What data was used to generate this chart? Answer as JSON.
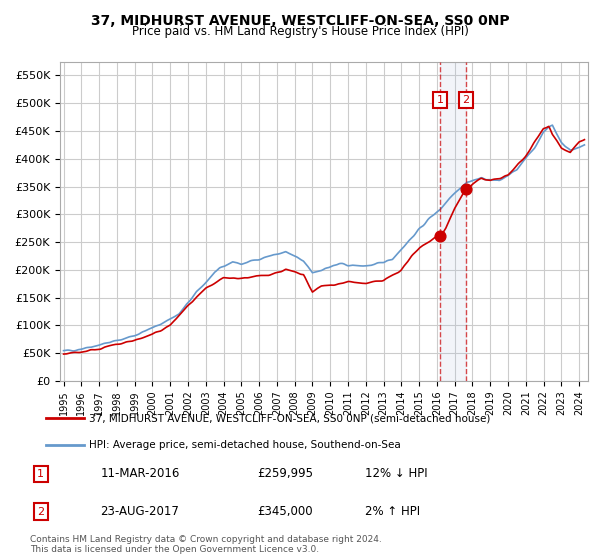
{
  "title": "37, MIDHURST AVENUE, WESTCLIFF-ON-SEA, SS0 0NP",
  "subtitle": "Price paid vs. HM Land Registry's House Price Index (HPI)",
  "legend_line1": "37, MIDHURST AVENUE, WESTCLIFF-ON-SEA, SS0 0NP (semi-detached house)",
  "legend_line2": "HPI: Average price, semi-detached house, Southend-on-Sea",
  "transaction1_date": "11-MAR-2016",
  "transaction1_price": 259995,
  "transaction1_hpi": "12% ↓ HPI",
  "transaction2_date": "23-AUG-2017",
  "transaction2_price": 345000,
  "transaction2_hpi": "2% ↑ HPI",
  "footer": "Contains HM Land Registry data © Crown copyright and database right 2024.\nThis data is licensed under the Open Government Licence v3.0.",
  "hpi_color": "#6699cc",
  "price_color": "#cc0000",
  "background_color": "#ffffff",
  "grid_color": "#cccccc",
  "ylim": [
    0,
    575000
  ],
  "yticks": [
    0,
    50000,
    100000,
    150000,
    200000,
    250000,
    300000,
    350000,
    400000,
    450000,
    500000,
    550000
  ],
  "transaction1_year": 2016.19,
  "transaction2_year": 2017.64
}
